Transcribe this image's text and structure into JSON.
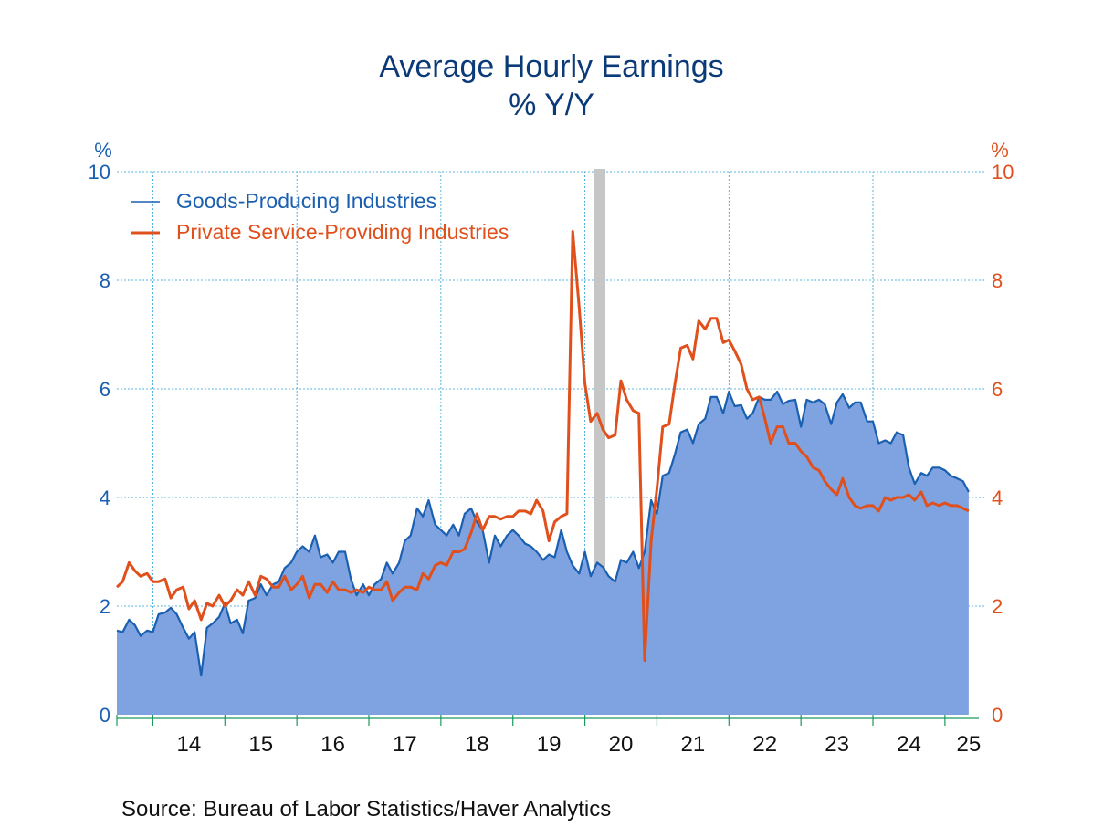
{
  "chart_data": {
    "type": "area",
    "title": "Average Hourly Earnings",
    "subtitle": "% Y/Y",
    "ylabel_left": "%",
    "ylabel_right": "%",
    "ylim": [
      0,
      10
    ],
    "y_ticks": [
      "0",
      "2",
      "4",
      "6",
      "8",
      "10"
    ],
    "x_range": [
      2013.5,
      2025.42
    ],
    "x_ticks": [
      "14",
      "15",
      "16",
      "17",
      "18",
      "19",
      "20",
      "21",
      "22",
      "23",
      "24",
      "25"
    ],
    "recession_shading": {
      "start": 2020.17,
      "end": 2020.33
    },
    "source": "Source:  Bureau of Labor Statistics/Haver Analytics",
    "series": [
      {
        "name": "Goods-Producing Industries",
        "style": "area",
        "color": "#1a5fb0",
        "fill": "#7fa3e0",
        "points": [
          [
            2013.5,
            1.55
          ],
          [
            2013.58,
            1.52
          ],
          [
            2013.67,
            1.75
          ],
          [
            2013.75,
            1.65
          ],
          [
            2013.83,
            1.45
          ],
          [
            2013.92,
            1.55
          ],
          [
            2014.0,
            1.52
          ],
          [
            2014.08,
            1.85
          ],
          [
            2014.17,
            1.88
          ],
          [
            2014.25,
            1.97
          ],
          [
            2014.33,
            1.85
          ],
          [
            2014.42,
            1.6
          ],
          [
            2014.5,
            1.4
          ],
          [
            2014.58,
            1.52
          ],
          [
            2014.67,
            0.72
          ],
          [
            2014.75,
            1.6
          ],
          [
            2014.83,
            1.68
          ],
          [
            2014.92,
            1.8
          ],
          [
            2015.0,
            2.05
          ],
          [
            2015.08,
            1.68
          ],
          [
            2015.17,
            1.75
          ],
          [
            2015.25,
            1.5
          ],
          [
            2015.33,
            2.1
          ],
          [
            2015.42,
            2.15
          ],
          [
            2015.5,
            2.4
          ],
          [
            2015.58,
            2.2
          ],
          [
            2015.67,
            2.4
          ],
          [
            2015.75,
            2.45
          ],
          [
            2015.83,
            2.7
          ],
          [
            2015.92,
            2.8
          ],
          [
            2016.0,
            3.0
          ],
          [
            2016.08,
            3.1
          ],
          [
            2016.17,
            3.0
          ],
          [
            2016.25,
            3.3
          ],
          [
            2016.33,
            2.9
          ],
          [
            2016.42,
            2.95
          ],
          [
            2016.5,
            2.8
          ],
          [
            2016.58,
            3.0
          ],
          [
            2016.67,
            3.0
          ],
          [
            2016.75,
            2.5
          ],
          [
            2016.83,
            2.2
          ],
          [
            2016.92,
            2.4
          ],
          [
            2017.0,
            2.2
          ],
          [
            2017.08,
            2.4
          ],
          [
            2017.17,
            2.5
          ],
          [
            2017.25,
            2.8
          ],
          [
            2017.33,
            2.6
          ],
          [
            2017.42,
            2.8
          ],
          [
            2017.5,
            3.2
          ],
          [
            2017.58,
            3.3
          ],
          [
            2017.67,
            3.8
          ],
          [
            2017.75,
            3.65
          ],
          [
            2017.83,
            3.95
          ],
          [
            2017.92,
            3.5
          ],
          [
            2018.0,
            3.4
          ],
          [
            2018.08,
            3.3
          ],
          [
            2018.17,
            3.5
          ],
          [
            2018.25,
            3.3
          ],
          [
            2018.33,
            3.7
          ],
          [
            2018.42,
            3.8
          ],
          [
            2018.5,
            3.55
          ],
          [
            2018.58,
            3.4
          ],
          [
            2018.67,
            2.8
          ],
          [
            2018.75,
            3.3
          ],
          [
            2018.83,
            3.1
          ],
          [
            2018.92,
            3.3
          ],
          [
            2019.0,
            3.4
          ],
          [
            2019.08,
            3.3
          ],
          [
            2019.17,
            3.15
          ],
          [
            2019.25,
            3.1
          ],
          [
            2019.33,
            3.0
          ],
          [
            2019.42,
            2.85
          ],
          [
            2019.5,
            2.95
          ],
          [
            2019.58,
            2.9
          ],
          [
            2019.67,
            3.4
          ],
          [
            2019.75,
            3.0
          ],
          [
            2019.83,
            2.75
          ],
          [
            2019.92,
            2.6
          ],
          [
            2020.0,
            3.0
          ],
          [
            2020.08,
            2.55
          ],
          [
            2020.17,
            2.8
          ],
          [
            2020.25,
            2.72
          ],
          [
            2020.33,
            2.55
          ],
          [
            2020.42,
            2.45
          ],
          [
            2020.5,
            2.85
          ],
          [
            2020.58,
            2.8
          ],
          [
            2020.67,
            3.0
          ],
          [
            2020.75,
            2.7
          ],
          [
            2020.83,
            3.0
          ],
          [
            2020.92,
            3.95
          ],
          [
            2021.0,
            3.7
          ],
          [
            2021.08,
            4.4
          ],
          [
            2021.17,
            4.45
          ],
          [
            2021.25,
            4.8
          ],
          [
            2021.33,
            5.2
          ],
          [
            2021.42,
            5.25
          ],
          [
            2021.5,
            5.0
          ],
          [
            2021.58,
            5.35
          ],
          [
            2021.67,
            5.45
          ],
          [
            2021.75,
            5.85
          ],
          [
            2021.83,
            5.85
          ],
          [
            2021.92,
            5.55
          ],
          [
            2022.0,
            5.95
          ],
          [
            2022.08,
            5.68
          ],
          [
            2022.17,
            5.7
          ],
          [
            2022.25,
            5.45
          ],
          [
            2022.33,
            5.55
          ],
          [
            2022.42,
            5.85
          ],
          [
            2022.5,
            5.8
          ],
          [
            2022.58,
            5.8
          ],
          [
            2022.67,
            5.95
          ],
          [
            2022.75,
            5.72
          ],
          [
            2022.83,
            5.78
          ],
          [
            2022.92,
            5.8
          ],
          [
            2023.0,
            5.3
          ],
          [
            2023.08,
            5.8
          ],
          [
            2023.17,
            5.75
          ],
          [
            2023.25,
            5.8
          ],
          [
            2023.33,
            5.72
          ],
          [
            2023.42,
            5.35
          ],
          [
            2023.5,
            5.75
          ],
          [
            2023.58,
            5.9
          ],
          [
            2023.67,
            5.65
          ],
          [
            2023.75,
            5.75
          ],
          [
            2023.83,
            5.75
          ],
          [
            2023.92,
            5.4
          ],
          [
            2024.0,
            5.4
          ],
          [
            2024.08,
            5.0
          ],
          [
            2024.17,
            5.05
          ],
          [
            2024.25,
            5.0
          ],
          [
            2024.33,
            5.2
          ],
          [
            2024.42,
            5.15
          ],
          [
            2024.5,
            4.55
          ],
          [
            2024.58,
            4.25
          ],
          [
            2024.67,
            4.45
          ],
          [
            2024.75,
            4.4
          ],
          [
            2024.83,
            4.55
          ],
          [
            2024.92,
            4.55
          ],
          [
            2025.0,
            4.5
          ],
          [
            2025.08,
            4.4
          ],
          [
            2025.17,
            4.35
          ],
          [
            2025.25,
            4.3
          ],
          [
            2025.33,
            4.1
          ]
        ]
      },
      {
        "name": "Private Service-Providing Industries",
        "style": "line",
        "color": "#e0501c",
        "points": [
          [
            2013.5,
            2.35
          ],
          [
            2013.58,
            2.45
          ],
          [
            2013.67,
            2.8
          ],
          [
            2013.75,
            2.65
          ],
          [
            2013.83,
            2.55
          ],
          [
            2013.92,
            2.6
          ],
          [
            2014.0,
            2.45
          ],
          [
            2014.08,
            2.45
          ],
          [
            2014.17,
            2.5
          ],
          [
            2014.25,
            2.15
          ],
          [
            2014.33,
            2.3
          ],
          [
            2014.42,
            2.35
          ],
          [
            2014.5,
            1.95
          ],
          [
            2014.58,
            2.1
          ],
          [
            2014.67,
            1.75
          ],
          [
            2014.75,
            2.05
          ],
          [
            2014.83,
            2.0
          ],
          [
            2014.92,
            2.2
          ],
          [
            2015.0,
            2.0
          ],
          [
            2015.08,
            2.1
          ],
          [
            2015.17,
            2.3
          ],
          [
            2015.25,
            2.2
          ],
          [
            2015.33,
            2.45
          ],
          [
            2015.42,
            2.2
          ],
          [
            2015.5,
            2.55
          ],
          [
            2015.58,
            2.5
          ],
          [
            2015.67,
            2.35
          ],
          [
            2015.75,
            2.35
          ],
          [
            2015.83,
            2.55
          ],
          [
            2015.92,
            2.3
          ],
          [
            2016.0,
            2.4
          ],
          [
            2016.08,
            2.55
          ],
          [
            2016.17,
            2.15
          ],
          [
            2016.25,
            2.4
          ],
          [
            2016.33,
            2.4
          ],
          [
            2016.42,
            2.25
          ],
          [
            2016.5,
            2.45
          ],
          [
            2016.58,
            2.3
          ],
          [
            2016.67,
            2.3
          ],
          [
            2016.75,
            2.25
          ],
          [
            2016.83,
            2.3
          ],
          [
            2016.92,
            2.25
          ],
          [
            2017.0,
            2.35
          ],
          [
            2017.08,
            2.3
          ],
          [
            2017.17,
            2.3
          ],
          [
            2017.25,
            2.45
          ],
          [
            2017.33,
            2.1
          ],
          [
            2017.42,
            2.25
          ],
          [
            2017.5,
            2.35
          ],
          [
            2017.58,
            2.35
          ],
          [
            2017.67,
            2.3
          ],
          [
            2017.75,
            2.6
          ],
          [
            2017.83,
            2.5
          ],
          [
            2017.92,
            2.75
          ],
          [
            2018.0,
            2.8
          ],
          [
            2018.08,
            2.75
          ],
          [
            2018.17,
            3.0
          ],
          [
            2018.25,
            3.0
          ],
          [
            2018.33,
            3.05
          ],
          [
            2018.42,
            3.35
          ],
          [
            2018.5,
            3.7
          ],
          [
            2018.58,
            3.4
          ],
          [
            2018.67,
            3.65
          ],
          [
            2018.75,
            3.65
          ],
          [
            2018.83,
            3.6
          ],
          [
            2018.92,
            3.65
          ],
          [
            2019.0,
            3.65
          ],
          [
            2019.08,
            3.75
          ],
          [
            2019.17,
            3.75
          ],
          [
            2019.25,
            3.7
          ],
          [
            2019.33,
            3.95
          ],
          [
            2019.42,
            3.75
          ],
          [
            2019.5,
            3.2
          ],
          [
            2019.58,
            3.55
          ],
          [
            2019.67,
            3.65
          ],
          [
            2019.75,
            3.7
          ],
          [
            2019.83,
            8.9
          ],
          [
            2019.92,
            7.5
          ],
          [
            2020.0,
            6.1
          ],
          [
            2020.08,
            5.4
          ],
          [
            2020.17,
            5.55
          ],
          [
            2020.25,
            5.25
          ],
          [
            2020.33,
            5.1
          ],
          [
            2020.42,
            5.15
          ],
          [
            2020.5,
            6.15
          ],
          [
            2020.58,
            5.8
          ],
          [
            2020.67,
            5.6
          ],
          [
            2020.75,
            5.55
          ],
          [
            2020.83,
            1.0
          ],
          [
            2020.92,
            3.2
          ],
          [
            2021.0,
            4.15
          ],
          [
            2021.08,
            5.3
          ],
          [
            2021.17,
            5.35
          ],
          [
            2021.25,
            6.1
          ],
          [
            2021.33,
            6.75
          ],
          [
            2021.42,
            6.8
          ],
          [
            2021.5,
            6.55
          ],
          [
            2021.58,
            7.25
          ],
          [
            2021.67,
            7.1
          ],
          [
            2021.75,
            7.3
          ],
          [
            2021.83,
            7.3
          ],
          [
            2021.92,
            6.85
          ],
          [
            2022.0,
            6.9
          ],
          [
            2022.08,
            6.7
          ],
          [
            2022.17,
            6.45
          ],
          [
            2022.25,
            6.0
          ],
          [
            2022.33,
            5.8
          ],
          [
            2022.42,
            5.85
          ],
          [
            2022.5,
            5.45
          ],
          [
            2022.58,
            5.0
          ],
          [
            2022.67,
            5.3
          ],
          [
            2022.75,
            5.3
          ],
          [
            2022.83,
            5.0
          ],
          [
            2022.92,
            5.0
          ],
          [
            2023.0,
            4.85
          ],
          [
            2023.08,
            4.75
          ],
          [
            2023.17,
            4.55
          ],
          [
            2023.25,
            4.5
          ],
          [
            2023.33,
            4.3
          ],
          [
            2023.42,
            4.15
          ],
          [
            2023.5,
            4.05
          ],
          [
            2023.58,
            4.35
          ],
          [
            2023.67,
            4.0
          ],
          [
            2023.75,
            3.85
          ],
          [
            2023.83,
            3.8
          ],
          [
            2023.92,
            3.85
          ],
          [
            2024.0,
            3.85
          ],
          [
            2024.08,
            3.75
          ],
          [
            2024.17,
            4.0
          ],
          [
            2024.25,
            3.95
          ],
          [
            2024.33,
            4.0
          ],
          [
            2024.42,
            4.0
          ],
          [
            2024.5,
            4.05
          ],
          [
            2024.58,
            3.95
          ],
          [
            2024.67,
            4.1
          ],
          [
            2024.75,
            3.85
          ],
          [
            2024.83,
            3.9
          ],
          [
            2024.92,
            3.85
          ],
          [
            2025.0,
            3.9
          ],
          [
            2025.08,
            3.85
          ],
          [
            2025.17,
            3.85
          ],
          [
            2025.25,
            3.8
          ],
          [
            2025.33,
            3.75
          ]
        ]
      }
    ]
  }
}
